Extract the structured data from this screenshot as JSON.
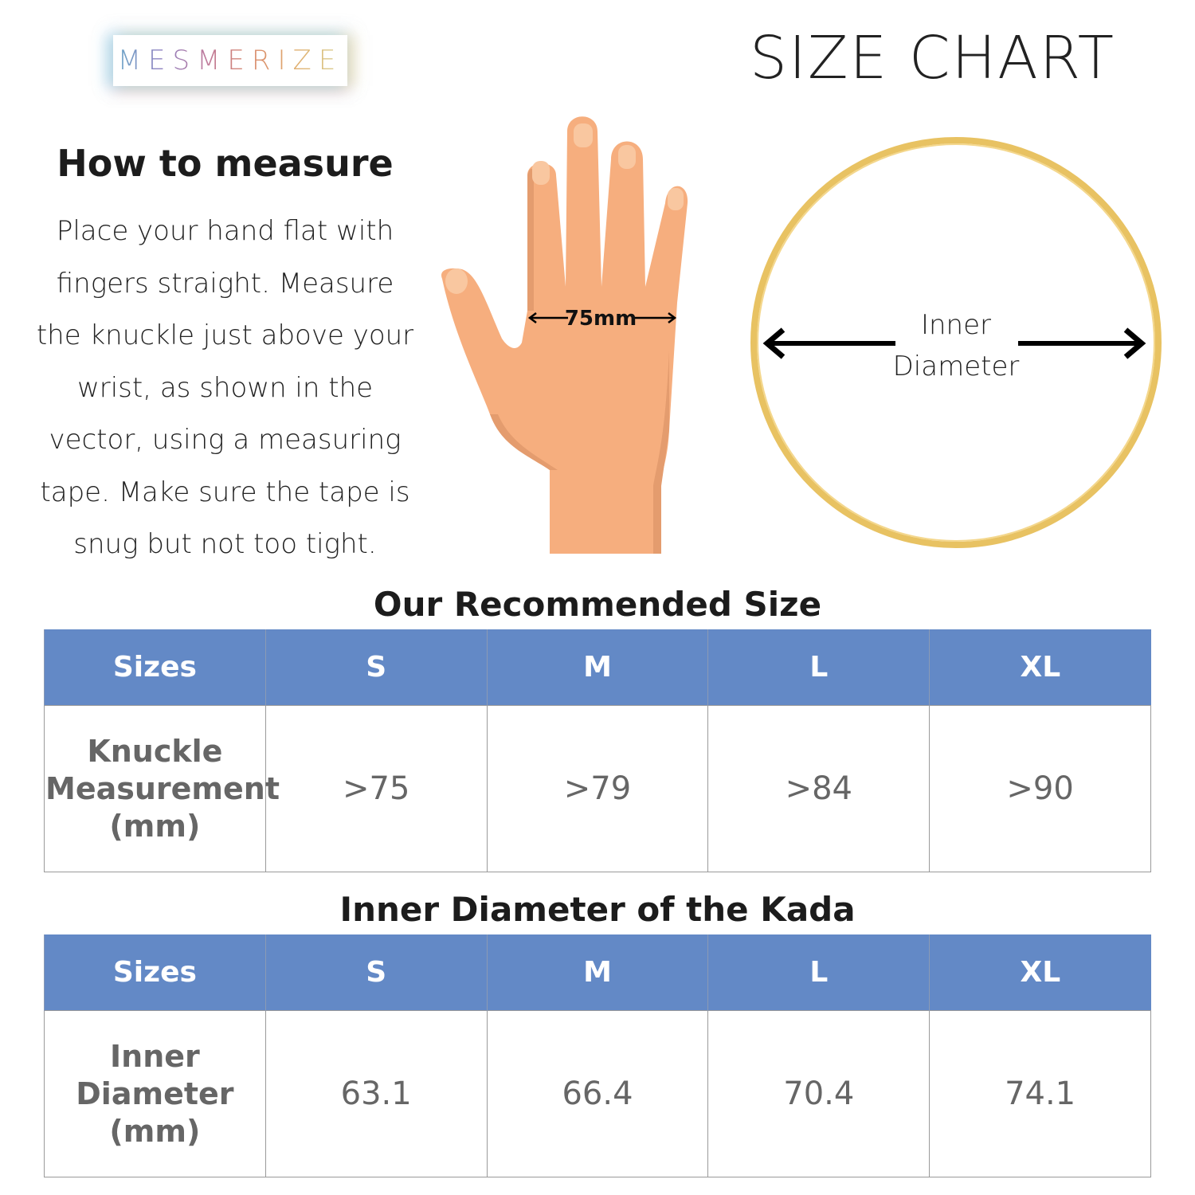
{
  "brand": {
    "logo_text": "MESMERIZE"
  },
  "header": {
    "title": "SIZE CHART"
  },
  "howto": {
    "heading": "How to measure",
    "body": "Place your hand flat with fingers straight. Measure the knuckle just above your wrist, as shown in the vector, using a measuring tape. Make sure the tape is snug but not too tight."
  },
  "hand": {
    "measure_label": "75mm"
  },
  "ring": {
    "label_line1": "Inner",
    "label_line2": "Diameter"
  },
  "colors": {
    "header_blue": "#6389c6",
    "gold": "#e8c262",
    "skin": "#f6ae7e"
  },
  "table1": {
    "title": "Our Recommended Size",
    "headers": [
      "Sizes",
      "S",
      "M",
      "L",
      "XL"
    ],
    "row_label": [
      "Knuckle",
      "Measurement",
      "(mm)"
    ],
    "values": [
      ">75",
      ">79",
      ">84",
      ">90"
    ]
  },
  "table2": {
    "title": "Inner Diameter of the Kada",
    "headers": [
      "Sizes",
      "S",
      "M",
      "L",
      "XL"
    ],
    "row_label": [
      "Inner",
      "Diameter",
      "(mm)"
    ],
    "values": [
      "63.1",
      "66.4",
      "70.4",
      "74.1"
    ]
  }
}
